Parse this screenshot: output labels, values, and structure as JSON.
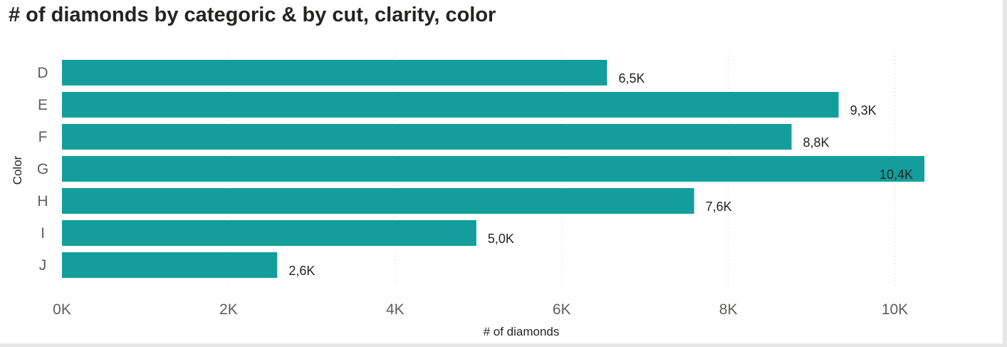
{
  "visual": {
    "title": "# of diamonds by categoric & by cut, clarity, color"
  },
  "chart_data": {
    "type": "bar",
    "orientation": "horizontal",
    "title": "# of diamonds by categoric & by cut, clarity, color",
    "xlabel": "# of diamonds",
    "ylabel": "Color",
    "categories": [
      "D",
      "E",
      "F",
      "G",
      "H",
      "I",
      "J"
    ],
    "values": [
      6545,
      9325,
      8760,
      10355,
      7590,
      4975,
      2585
    ],
    "data_labels": [
      "6,5K",
      "9,3K",
      "8,8K",
      "10,4K",
      "7,6K",
      "5,0K",
      "2,6K"
    ],
    "xlim": [
      0,
      10500
    ],
    "xticks": [
      0,
      2000,
      4000,
      6000,
      8000,
      10000
    ],
    "xtick_labels": [
      "0K",
      "2K",
      "4K",
      "6K",
      "8K",
      "10K"
    ],
    "grid": "vertical-dotted",
    "legend": "none",
    "bar_color": "#139e9c"
  }
}
